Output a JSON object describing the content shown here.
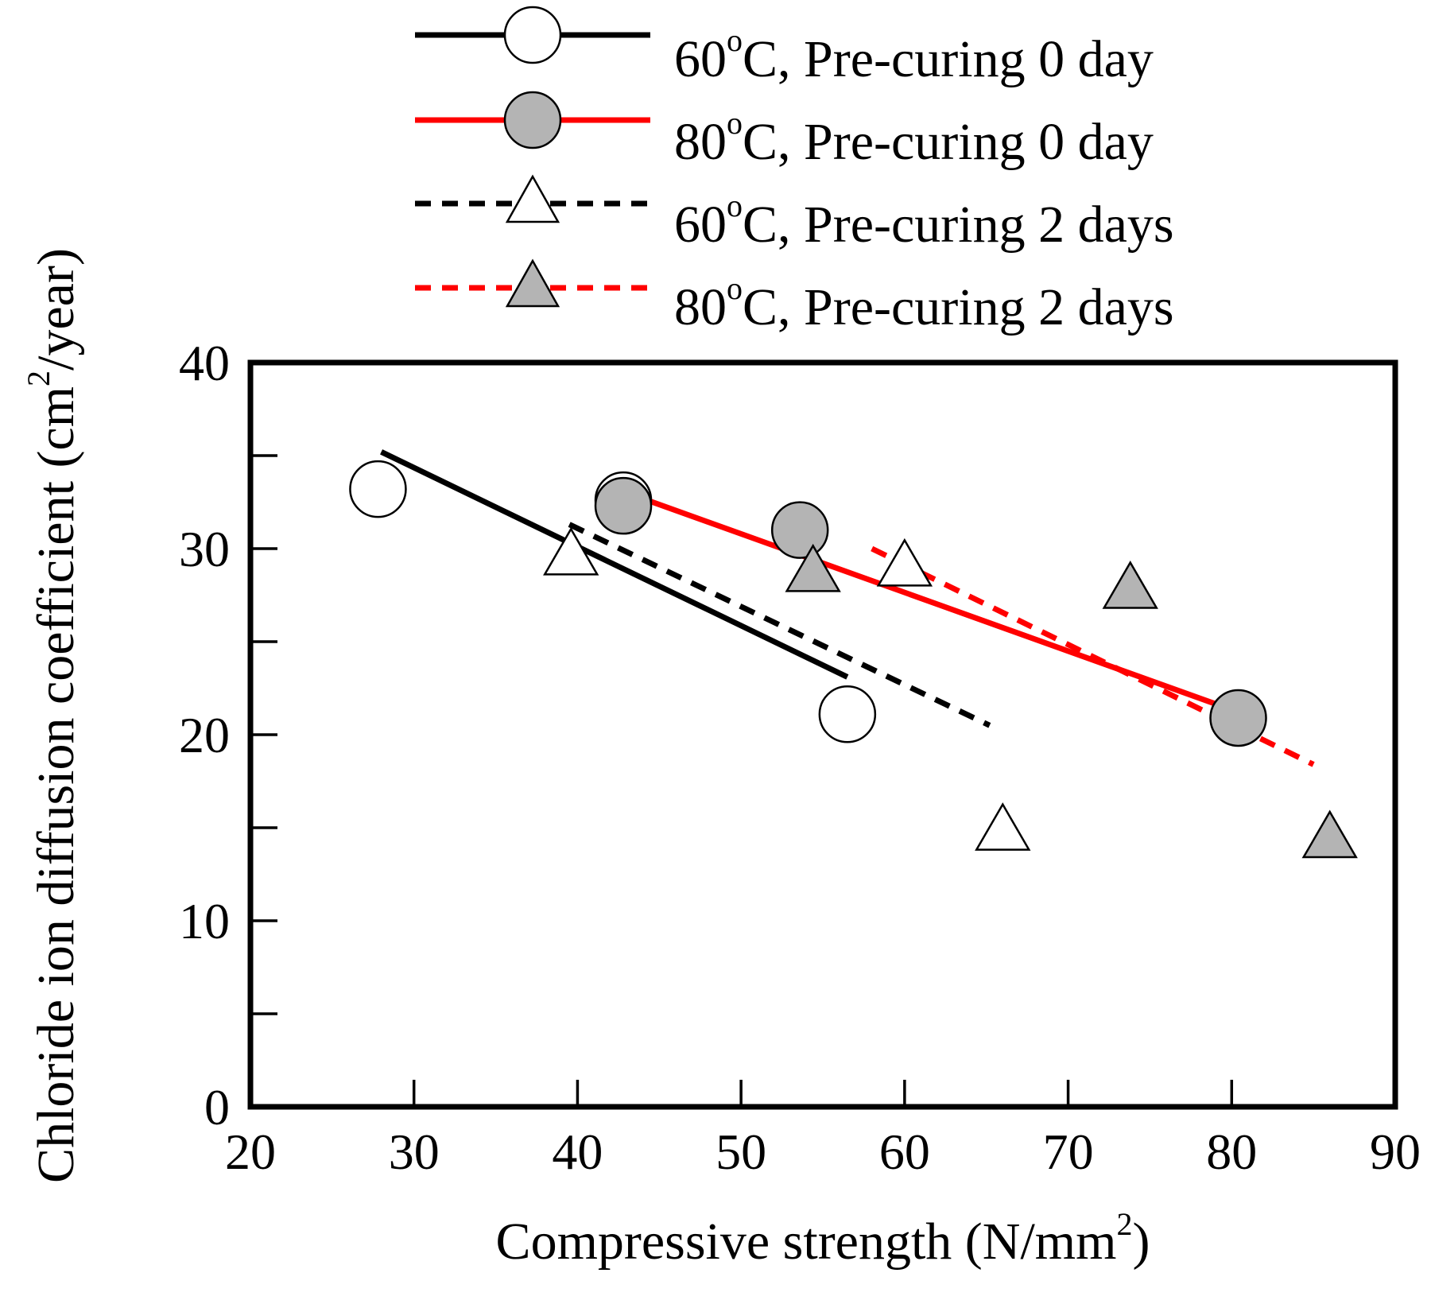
{
  "chart_data": {
    "type": "scatter",
    "title": "",
    "xlabel": {
      "main": "Compressive strength (N/mm",
      "sup": "2",
      "tail": ")"
    },
    "ylabel": {
      "main": "Chloride ion diffusion coefficient (cm",
      "sup": "2",
      "tail": "/year)"
    },
    "xlim": [
      20,
      90
    ],
    "ylim": [
      0,
      40
    ],
    "xticks": [
      20,
      30,
      40,
      50,
      60,
      70,
      80,
      90
    ],
    "yticks_labeled": [
      0,
      10,
      20,
      30,
      40
    ],
    "yticks_minor": [
      5,
      15,
      25,
      35
    ],
    "legend_position": "top-center, above plot",
    "series": [
      {
        "name": "60oC, Pre-curing 0 day",
        "label_parts": {
          "pre": "60",
          "sup": "o",
          "post": "C, Pre-curing 0 day"
        },
        "marker": "circle",
        "marker_fill": "#ffffff",
        "line_color": "#000000",
        "line_style": "solid",
        "points": [
          [
            27.8,
            33.2
          ],
          [
            56.5,
            21.1
          ],
          [
            42.8,
            32.6
          ]
        ],
        "fit": [
          [
            28,
            35.2
          ],
          [
            56.5,
            23.1
          ]
        ]
      },
      {
        "name": "80oC, Pre-curing 0 day",
        "label_parts": {
          "pre": "80",
          "sup": "o",
          "post": "C, Pre-curing 0 day"
        },
        "marker": "circle",
        "marker_fill": "#b4b4b4",
        "line_color": "#ff0000",
        "line_style": "solid",
        "points": [
          [
            42.8,
            32.3
          ],
          [
            53.6,
            31.0
          ],
          [
            80.4,
            20.9
          ]
        ],
        "fit": [
          [
            43,
            33.0
          ],
          [
            79.5,
            21.5
          ]
        ]
      },
      {
        "name": "60oC, Pre-curing 2 days",
        "label_parts": {
          "pre": "60",
          "sup": "o",
          "post": "C, Pre-curing 2 days"
        },
        "marker": "triangle",
        "marker_fill": "#ffffff",
        "line_color": "#000000",
        "line_style": "dashed",
        "points": [
          [
            39.6,
            29.6
          ],
          [
            60.0,
            29.0
          ],
          [
            66.0,
            14.8
          ]
        ],
        "fit": [
          [
            39.5,
            31.3
          ],
          [
            65.2,
            20.5
          ]
        ]
      },
      {
        "name": "80oC, Pre-curing 2 days",
        "label_parts": {
          "pre": "80",
          "sup": "o",
          "post": "C, Pre-curing 2 days"
        },
        "marker": "triangle",
        "marker_fill": "#b4b4b4",
        "line_color": "#ff0000",
        "line_style": "dashed",
        "points": [
          [
            54.4,
            28.7
          ],
          [
            73.8,
            27.8
          ],
          [
            86.0,
            14.4
          ]
        ],
        "fit": [
          [
            58,
            30.0
          ],
          [
            85,
            18.4
          ]
        ]
      }
    ]
  }
}
